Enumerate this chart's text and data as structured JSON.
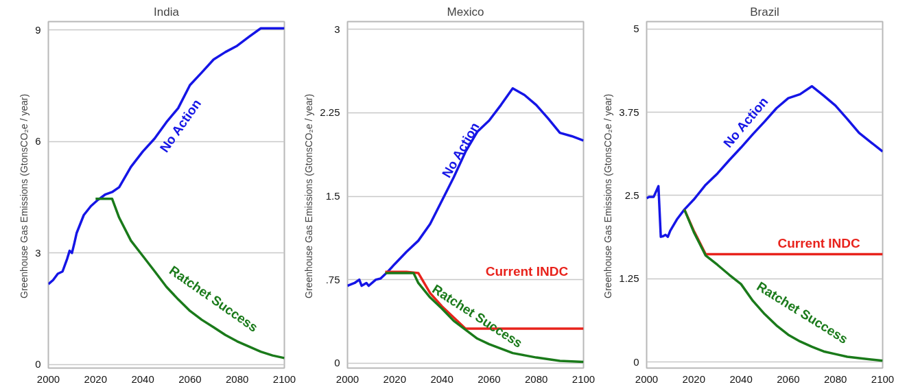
{
  "chart_data": [
    {
      "type": "line",
      "title": "India",
      "ylabel": "Greenhouse Gas Emissions  (GtonsCO₂e / year)",
      "xlim": [
        2000,
        2100
      ],
      "xticks": [
        2000,
        2020,
        2040,
        2060,
        2080,
        2100
      ],
      "ylim": [
        -0.1,
        9.23
      ],
      "yticks": [
        0,
        3,
        6,
        9
      ],
      "grid": "y",
      "line_style": "solid",
      "series": [
        {
          "name": "No Action",
          "color": "#1515e6",
          "x": [
            2000,
            2002,
            2004,
            2006,
            2008,
            2009,
            2010,
            2011,
            2012,
            2015,
            2018,
            2021,
            2024,
            2027,
            2030,
            2035,
            2040,
            2045,
            2050,
            2055,
            2060,
            2065,
            2070,
            2075,
            2080,
            2085,
            2090,
            2100
          ],
          "values": [
            2.16,
            2.27,
            2.44,
            2.5,
            2.85,
            3.06,
            3.0,
            3.26,
            3.54,
            4.02,
            4.26,
            4.43,
            4.57,
            4.64,
            4.77,
            5.32,
            5.73,
            6.08,
            6.52,
            6.9,
            7.52,
            7.86,
            8.21,
            8.41,
            8.58,
            8.82,
            9.05,
            9.05
          ]
        },
        {
          "name": "Ratchet Success",
          "color": "#1a7a1a",
          "x": [
            2020,
            2027,
            2030,
            2035,
            2040,
            2045,
            2050,
            2055,
            2060,
            2065,
            2070,
            2075,
            2080,
            2085,
            2090,
            2095,
            2100
          ],
          "values": [
            4.46,
            4.46,
            3.95,
            3.33,
            2.92,
            2.51,
            2.09,
            1.75,
            1.44,
            1.2,
            1.0,
            0.79,
            0.62,
            0.48,
            0.34,
            0.24,
            0.17
          ]
        }
      ]
    },
    {
      "type": "line",
      "title": "Mexico",
      "ylabel": "Greenhouse Gas Emissions  (GtonsCO₂e / year)",
      "xlim": [
        2000,
        2100
      ],
      "xticks": [
        2000,
        2020,
        2040,
        2060,
        2080,
        2100
      ],
      "ylim": [
        -0.045,
        3.07
      ],
      "yticks": [
        0,
        {
          "value": 0.75,
          "label": ".75"
        },
        1.5,
        2.25,
        3
      ],
      "grid": "y",
      "line_style": "solid",
      "series": [
        {
          "name": "No Action",
          "color": "#1515e6",
          "x": [
            2000,
            2003,
            2005,
            2006,
            2008,
            2009,
            2012,
            2014,
            2017,
            2020,
            2025,
            2030,
            2035,
            2040,
            2045,
            2050,
            2055,
            2060,
            2065,
            2070,
            2075,
            2080,
            2085,
            2090,
            2095,
            2100
          ],
          "values": [
            0.695,
            0.72,
            0.75,
            0.695,
            0.72,
            0.695,
            0.75,
            0.76,
            0.82,
            0.89,
            1.0,
            1.1,
            1.25,
            1.46,
            1.67,
            1.9,
            2.08,
            2.18,
            2.32,
            2.47,
            2.41,
            2.32,
            2.2,
            2.07,
            2.04,
            2.0
          ]
        },
        {
          "name": "Current INDC",
          "color": "#e8231c",
          "x": [
            2016,
            2025,
            2030,
            2035,
            2040,
            2045,
            2050,
            2100
          ],
          "values": [
            0.82,
            0.82,
            0.81,
            0.63,
            0.51,
            0.41,
            0.31,
            0.31
          ]
        },
        {
          "name": "Ratchet Success",
          "color": "#1a7a1a",
          "x": [
            2016,
            2028,
            2030,
            2035,
            2040,
            2045,
            2050,
            2055,
            2060,
            2065,
            2070,
            2075,
            2080,
            2090,
            2100
          ],
          "values": [
            0.81,
            0.81,
            0.72,
            0.59,
            0.49,
            0.38,
            0.3,
            0.22,
            0.17,
            0.13,
            0.09,
            0.07,
            0.05,
            0.02,
            0.01
          ]
        }
      ]
    },
    {
      "type": "line",
      "title": "Brazil",
      "ylabel": "Greenhouse Gas Emissions  (GtonsCO₂e / year)",
      "xlim": [
        2000,
        2100
      ],
      "xticks": [
        2000,
        2020,
        2040,
        2060,
        2080,
        2100
      ],
      "ylim": [
        -0.09,
        5.11
      ],
      "yticks": [
        0,
        1.25,
        2.5,
        3.75,
        5
      ],
      "grid": "y",
      "line_style": "solid",
      "series": [
        {
          "name": "No Action",
          "color": "#1515e6",
          "x": [
            2000,
            2001,
            2003,
            2005,
            2006,
            2007,
            2008,
            2009,
            2010,
            2013,
            2016,
            2020,
            2025,
            2030,
            2035,
            2040,
            2045,
            2050,
            2055,
            2060,
            2065,
            2070,
            2075,
            2080,
            2085,
            2090,
            2095,
            2100
          ],
          "values": [
            2.46,
            2.48,
            2.48,
            2.64,
            1.88,
            1.89,
            1.91,
            1.88,
            1.97,
            2.15,
            2.29,
            2.44,
            2.66,
            2.83,
            3.03,
            3.22,
            3.42,
            3.61,
            3.81,
            3.96,
            4.02,
            4.14,
            4.0,
            3.85,
            3.65,
            3.44,
            3.3,
            3.16
          ]
        },
        {
          "name": "Current INDC",
          "color": "#e8231c",
          "x": [
            2016,
            2020,
            2025,
            2100
          ],
          "values": [
            2.29,
            1.97,
            1.62,
            1.62
          ]
        },
        {
          "name": "Ratchet Success",
          "color": "#1a7a1a",
          "x": [
            2016,
            2020,
            2025,
            2030,
            2035,
            2040,
            2045,
            2050,
            2055,
            2060,
            2065,
            2070,
            2075,
            2080,
            2085,
            2090,
            2100
          ],
          "values": [
            2.29,
            1.95,
            1.6,
            1.46,
            1.31,
            1.17,
            0.92,
            0.72,
            0.55,
            0.41,
            0.31,
            0.23,
            0.16,
            0.12,
            0.08,
            0.06,
            0.02
          ]
        }
      ]
    }
  ]
}
